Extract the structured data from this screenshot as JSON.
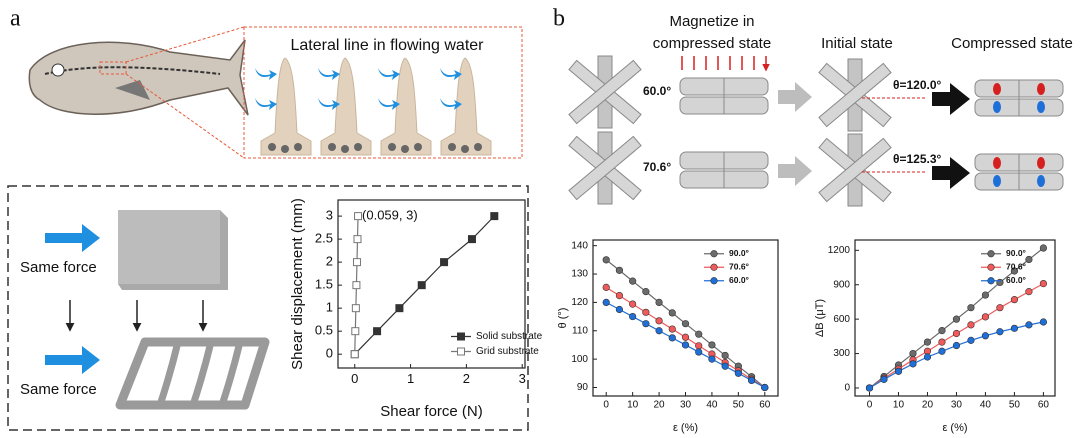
{
  "panel_labels": [
    "a",
    "b"
  ],
  "lateral_title": "Lateral line in flowing water",
  "force_labels": [
    "Same force",
    "Same force"
  ],
  "stage_titles": {
    "magnetize": [
      "Magnetize in",
      "compressed state"
    ],
    "initial": "Initial state",
    "compressed": "Compressed state"
  },
  "unit_angles": [
    "60.0°",
    "70.6°"
  ],
  "theta_labels": [
    "θ=120.0°",
    "θ=125.3°"
  ],
  "chart_data": [
    {
      "type": "line",
      "xlabel": "Shear force (N)",
      "ylabel": "Shear displacement (mm)",
      "xlim": [
        -0.3,
        3.05
      ],
      "ylim": [
        -0.3,
        3.35
      ],
      "xticks": [
        0,
        1,
        2,
        3
      ],
      "yticks": [
        0,
        0.5,
        1,
        1.5,
        2,
        2.5,
        3
      ],
      "legend": "lower right",
      "annotation": "(0.059, 3)",
      "series": [
        {
          "name": "Solid substrate",
          "color": "#333333",
          "marker": "square-filled",
          "x": [
            0,
            0.4,
            0.8,
            1.2,
            1.6,
            2.1,
            2.5
          ],
          "values": [
            0,
            0.5,
            1,
            1.5,
            2,
            2.5,
            3
          ]
        },
        {
          "name": "Grid substrate",
          "color": "#777777",
          "marker": "square-open",
          "x": [
            0,
            0.01,
            0.02,
            0.03,
            0.04,
            0.049,
            0.059
          ],
          "values": [
            0,
            0.5,
            1,
            1.5,
            2,
            2.5,
            3
          ]
        }
      ]
    },
    {
      "type": "line",
      "xlabel": "ε (%)",
      "ylabel": "θ (°)",
      "xlim": [
        -5,
        65
      ],
      "ylim": [
        87,
        142
      ],
      "xticks": [
        0,
        10,
        20,
        30,
        40,
        50,
        60
      ],
      "yticks": [
        90,
        100,
        110,
        120,
        130,
        140
      ],
      "legend": "upper right",
      "x": [
        0,
        5,
        10,
        15,
        20,
        25,
        30,
        35,
        40,
        45,
        50,
        55,
        60
      ],
      "series": [
        {
          "name": "90.0°",
          "color": "#6b6b6b",
          "marker": "circle",
          "values": [
            135,
            131.3,
            127.5,
            123.8,
            120,
            116.3,
            112.5,
            108.8,
            105,
            101.3,
            97.5,
            93.8,
            90
          ]
        },
        {
          "name": "70.6°",
          "color": "#f05a5a",
          "marker": "circle",
          "values": [
            125.3,
            122.4,
            119.4,
            116.5,
            113.5,
            110.6,
            107.7,
            104.7,
            101.8,
            98.8,
            95.9,
            92.9,
            90
          ]
        },
        {
          "name": "60.0°",
          "color": "#1f6fd8",
          "marker": "circle",
          "values": [
            120,
            117.5,
            115,
            112.5,
            110,
            107.5,
            105,
            102.5,
            100,
            97.5,
            95,
            92.5,
            90
          ]
        }
      ]
    },
    {
      "type": "line",
      "xlabel": "ε (%)",
      "ylabel": "ΔB (μT)",
      "xlim": [
        -5,
        64
      ],
      "ylim": [
        -70,
        1290
      ],
      "xticks": [
        0,
        10,
        20,
        30,
        40,
        50,
        60
      ],
      "yticks": [
        0,
        300,
        600,
        900,
        1200
      ],
      "legend": "upper right",
      "x": [
        0,
        5,
        10,
        15,
        20,
        25,
        30,
        35,
        40,
        45,
        50,
        55,
        60
      ],
      "series": [
        {
          "name": "90.0°",
          "color": "#6b6b6b",
          "marker": "circle",
          "values": [
            0,
            100,
            200,
            300,
            400,
            500,
            600,
            700,
            810,
            920,
            1020,
            1120,
            1220
          ]
        },
        {
          "name": "70.6°",
          "color": "#f05a5a",
          "marker": "circle",
          "values": [
            0,
            85,
            165,
            245,
            320,
            400,
            475,
            550,
            620,
            700,
            770,
            840,
            910
          ]
        },
        {
          "name": "60.0°",
          "color": "#1f6fd8",
          "marker": "circle",
          "values": [
            0,
            75,
            145,
            210,
            270,
            320,
            370,
            415,
            455,
            490,
            520,
            550,
            575
          ]
        }
      ]
    }
  ]
}
